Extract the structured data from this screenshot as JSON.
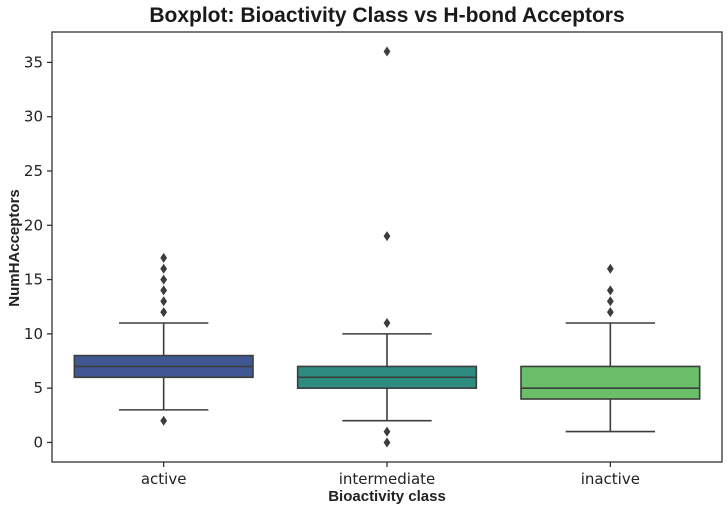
{
  "chart_data": {
    "type": "boxplot",
    "title": "Boxplot: Bioactivity Class vs H-bond Acceptors",
    "xlabel": "Bioactivity class",
    "ylabel": "NumHAcceptors",
    "ylim": [
      -1.8,
      37.8
    ],
    "yticks": [
      0,
      5,
      10,
      15,
      20,
      25,
      30,
      35
    ],
    "ytick_labels": [
      "0",
      "5",
      "10",
      "15",
      "20",
      "25",
      "30",
      "35"
    ],
    "grid": false,
    "categories": [
      "active",
      "intermediate",
      "inactive"
    ],
    "boxes": [
      {
        "category": "active",
        "color": "#3f5893",
        "whisker_low": 3,
        "q1": 6,
        "median": 7,
        "q3": 8,
        "whisker_high": 11,
        "outliers": [
          2,
          12,
          13,
          14,
          15,
          16,
          17
        ]
      },
      {
        "category": "intermediate",
        "color": "#2c8c80",
        "whisker_low": 2,
        "q1": 5,
        "median": 6,
        "q3": 7,
        "whisker_high": 10,
        "outliers": [
          0,
          1,
          11,
          19,
          36
        ]
      },
      {
        "category": "inactive",
        "color": "#6abf68",
        "whisker_low": 1,
        "q1": 4,
        "median": 5,
        "q3": 7,
        "whisker_high": 11,
        "outliers": [
          12,
          13,
          14,
          16
        ]
      }
    ],
    "line_color": "#3d3d3d",
    "axis_color": "#2b2b2b"
  }
}
